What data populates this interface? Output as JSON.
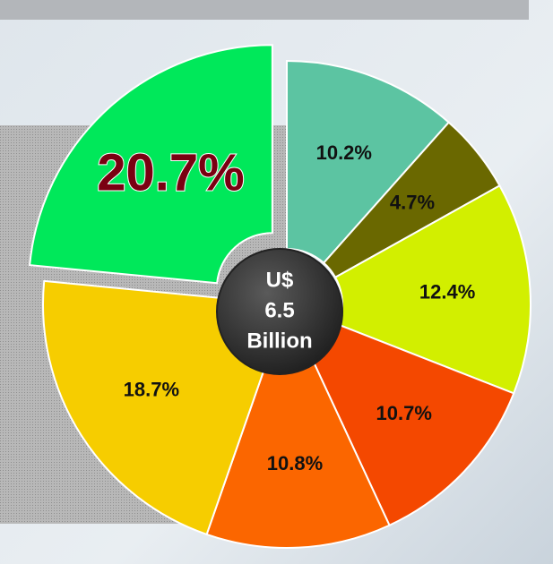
{
  "chart_data": {
    "type": "pie",
    "categories": [
      null,
      null,
      null,
      null,
      null,
      null,
      null
    ],
    "values": [
      10.2,
      4.7,
      12.4,
      10.7,
      10.8,
      18.7,
      20.7
    ],
    "value_labels": [
      "10.2%",
      "4.7%",
      "12.4%",
      "10.7%",
      "10.8%",
      "18.7%",
      "20.7%"
    ],
    "colors": [
      "#5cc4a2",
      "#6a6800",
      "#d2ef00",
      "#f44800",
      "#fb6600",
      "#f6cd00",
      "#00e85a"
    ],
    "explode": [
      false,
      false,
      false,
      false,
      false,
      false,
      true
    ],
    "center_label": [
      "U$",
      "6.5",
      "Billion"
    ]
  }
}
